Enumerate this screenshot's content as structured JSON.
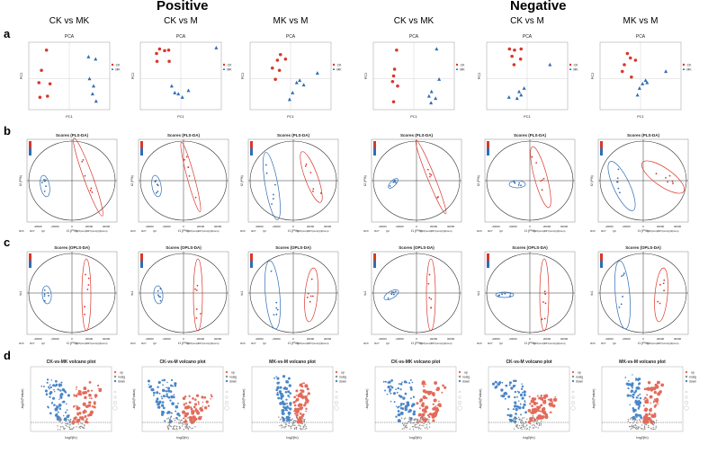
{
  "sections": {
    "positive": "Positive",
    "negative": "Negative"
  },
  "groups": [
    "CK vs MK",
    "CK vs M",
    "MK vs M",
    "CK vs MK",
    "CK vs M",
    "MK vs M"
  ],
  "row_letters": [
    "a",
    "b",
    "c",
    "d"
  ],
  "colors": {
    "red": "#d9372b",
    "blue": "#2f6db5",
    "volcano_up": "#e36b5b",
    "volcano_down": "#4a86c8",
    "volcano_none": "#8c8c8c"
  },
  "chart_data": [
    {
      "type": "scatter",
      "row": "a",
      "title": "PCA",
      "xlabel": "PC1",
      "ylabel": "PC2",
      "legend": [
        "CK",
        "MK"
      ],
      "panels": [
        {
          "group": "CK vs MK",
          "red": [
            [
              -4.5,
              4.6
            ],
            [
              -5.5,
              1.0
            ],
            [
              -6.0,
              -1.2
            ],
            [
              -5.8,
              -3.8
            ],
            [
              -4.3,
              -3.6
            ],
            [
              -3.8,
              -1.4
            ]
          ],
          "blue": [
            [
              3.8,
              3.4
            ],
            [
              5.2,
              3.0
            ],
            [
              4.0,
              -0.5
            ],
            [
              4.8,
              -1.8
            ],
            [
              5.3,
              -4.5
            ],
            [
              4.6,
              -3.2
            ]
          ]
        },
        {
          "group": "CK vs M",
          "red": [
            [
              -4.8,
              4.0
            ],
            [
              -4.2,
              4.8
            ],
            [
              -3.2,
              4.5
            ],
            [
              -2.4,
              4.6
            ],
            [
              -4.7,
              2.6
            ],
            [
              -2.3,
              2.6
            ]
          ],
          "blue": [
            [
              7.0,
              5.0
            ],
            [
              -1.2,
              -3.0
            ],
            [
              -0.5,
              -3.2
            ],
            [
              0.3,
              -3.8
            ],
            [
              1.5,
              -2.6
            ],
            [
              -1.8,
              -1.8
            ]
          ]
        },
        {
          "group": "MK vs M",
          "red": [
            [
              -2.0,
              3.8
            ],
            [
              -2.6,
              2.8
            ],
            [
              -1.0,
              3.0
            ],
            [
              -3.6,
              1.4
            ],
            [
              -2.2,
              1.0
            ],
            [
              -3.0,
              -0.6
            ]
          ],
          "blue": [
            [
              5.3,
              0.5
            ],
            [
              1.8,
              -0.8
            ],
            [
              2.6,
              -1.6
            ],
            [
              0.4,
              -3.0
            ],
            [
              -0.2,
              -4.2
            ],
            [
              1.2,
              -1.2
            ]
          ]
        },
        {
          "group": "CK vs MK",
          "red": [
            [
              -3.4,
              4.6
            ],
            [
              -3.8,
              1.2
            ],
            [
              -4.0,
              0.0
            ],
            [
              -4.2,
              -1.0
            ],
            [
              -3.2,
              -1.8
            ],
            [
              -4.0,
              -4.6
            ]
          ],
          "blue": [
            [
              4.5,
              4.8
            ],
            [
              5.0,
              -0.6
            ],
            [
              3.5,
              -2.8
            ],
            [
              3.0,
              -3.6
            ],
            [
              3.4,
              -4.8
            ],
            [
              4.3,
              -4.0
            ]
          ]
        },
        {
          "group": "CK vs M",
          "red": [
            [
              -3.5,
              4.8
            ],
            [
              -2.5,
              4.6
            ],
            [
              -1.2,
              4.8
            ],
            [
              -3.0,
              3.5
            ],
            [
              -1.3,
              3.0
            ],
            [
              -2.6,
              2.0
            ]
          ],
          "blue": [
            [
              4.5,
              2.0
            ],
            [
              -3.6,
              -3.8
            ],
            [
              -2.0,
              -4.0
            ],
            [
              -1.6,
              -2.8
            ],
            [
              -0.6,
              -2.2
            ],
            [
              -1.2,
              -3.4
            ]
          ]
        },
        {
          "group": "MK vs M",
          "red": [
            [
              -2.6,
              4.0
            ],
            [
              -2.0,
              3.2
            ],
            [
              -1.0,
              2.8
            ],
            [
              -3.2,
              2.0
            ],
            [
              -3.6,
              0.8
            ],
            [
              -1.8,
              -0.2
            ]
          ],
          "blue": [
            [
              5.0,
              0.8
            ],
            [
              1.0,
              -0.8
            ],
            [
              0.4,
              -1.4
            ],
            [
              -0.2,
              -2.2
            ],
            [
              -0.6,
              -3.4
            ],
            [
              1.3,
              -1.2
            ]
          ]
        }
      ]
    },
    {
      "type": "scatter",
      "row": "b",
      "title": "Scores (PLS-DA)",
      "xlabel": "t1 (P%)",
      "ylabel": "t2 (P%)",
      "axis_ticks": [
        "-40000",
        "-20000",
        "0",
        "20000",
        "40000"
      ],
      "footer_left": [
        "R2X",
        "R2Y",
        "Q2",
        "R2X(cum)",
        "R2Y(cum)",
        "Q2(cum)"
      ]
    },
    {
      "type": "scatter",
      "row": "c",
      "title": "Scores (OPLS-DA)",
      "xlabel": "t1 (P%)",
      "ylabel": "to1",
      "axis_ticks": [
        "-40000",
        "-20000",
        "0",
        "20000",
        "40000"
      ],
      "footer_left": [
        "R2X",
        "R2Y",
        "Q2",
        "R2X(cum)",
        "R2Y(cum)",
        "Q2(cum)"
      ]
    },
    {
      "type": "scatter",
      "row": "d",
      "titles": [
        "CK-vs-MK volcano plot",
        "CK-vs-M volcano plot",
        "MK-vs-M volcano plot",
        "CK-vs-MK volcano plot",
        "CK-vs-M volcano plot",
        "MK-vs-M volcano plot"
      ],
      "xlabel": "log2(fc)",
      "ylabel": "-log10(Pvalue)",
      "legend": [
        "up",
        "nosig",
        "down"
      ],
      "xlim": [
        -10,
        10
      ],
      "ylim": [
        0,
        12
      ]
    }
  ]
}
